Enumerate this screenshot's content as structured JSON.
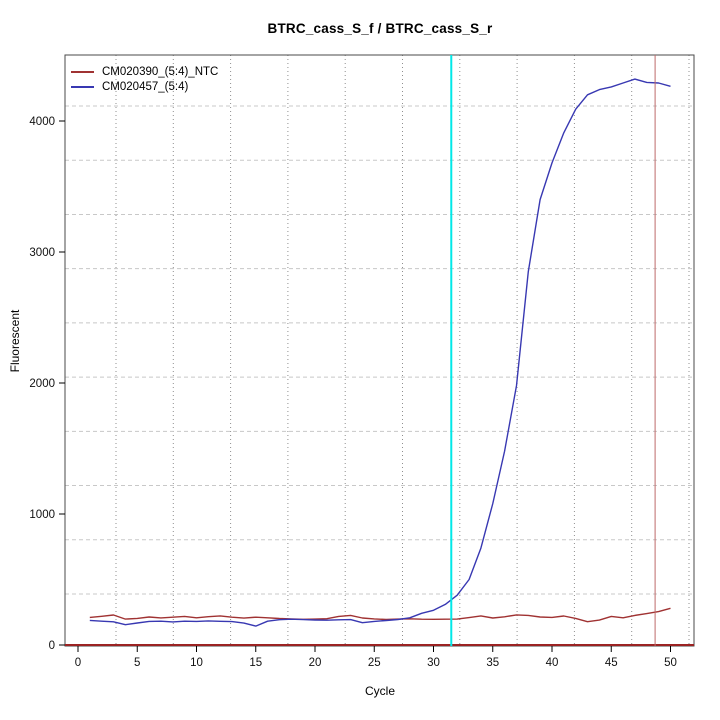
{
  "chart_data": {
    "type": "line",
    "title": "BTRC_cass_S_f / BTRC_cass_S_r",
    "xlabel": "Cycle",
    "ylabel": "Fluorescent",
    "xlim": [
      -1,
      52
    ],
    "ylim": [
      -10,
      4500
    ],
    "x_ticks": [
      0,
      5,
      10,
      15,
      20,
      25,
      30,
      35,
      40,
      45,
      50
    ],
    "y_ticks": [
      0,
      1000,
      2000,
      3000,
      4000
    ],
    "grid": {
      "vertical_style": "dotted",
      "horizontal_style": "dashed",
      "v_color": "#8f8f8f",
      "h_color": "#c8c8c8"
    },
    "legend_position": "top-left",
    "x": [
      1,
      2,
      3,
      4,
      5,
      6,
      7,
      8,
      9,
      10,
      11,
      12,
      13,
      14,
      15,
      16,
      17,
      18,
      19,
      20,
      21,
      22,
      23,
      24,
      25,
      26,
      27,
      28,
      29,
      30,
      31,
      32,
      33,
      34,
      35,
      36,
      37,
      38,
      39,
      40,
      41,
      42,
      43,
      44,
      45,
      46,
      47,
      48,
      49,
      50
    ],
    "series": [
      {
        "name": "CM020390_(5:4)_NTC",
        "color": "#A03232",
        "values": [
          211,
          219,
          229,
          198,
          203,
          214,
          207,
          212,
          218,
          208,
          216,
          222,
          212,
          205,
          212,
          208,
          202,
          199,
          196,
          198,
          201,
          218,
          226,
          206,
          199,
          195,
          198,
          200,
          197,
          196,
          197,
          198,
          209,
          222,
          206,
          215,
          230,
          226,
          214,
          211,
          221,
          203,
          178,
          190,
          218,
          208,
          226,
          240,
          255,
          280
        ]
      },
      {
        "name": "CM020457_(5:4)",
        "color": "#3838B2",
        "values": [
          188,
          182,
          177,
          155,
          168,
          180,
          182,
          176,
          182,
          180,
          184,
          181,
          179,
          167,
          144,
          182,
          193,
          197,
          194,
          191,
          189,
          192,
          194,
          170,
          180,
          187,
          195,
          208,
          242,
          265,
          310,
          380,
          500,
          740,
          1080,
          1480,
          1980,
          2850,
          3400,
          3680,
          3910,
          4090,
          4200,
          4240,
          4260,
          4290,
          4320,
          4295,
          4290,
          4265
        ]
      }
    ],
    "vlines": [
      {
        "x": 31.5,
        "color": "#00E8E8",
        "width": 2
      },
      {
        "x": 48.7,
        "color": "#BE6A6A",
        "width": 1
      }
    ],
    "hlines": [
      {
        "y": 0,
        "color": "#9B2323",
        "width": 2
      }
    ]
  }
}
